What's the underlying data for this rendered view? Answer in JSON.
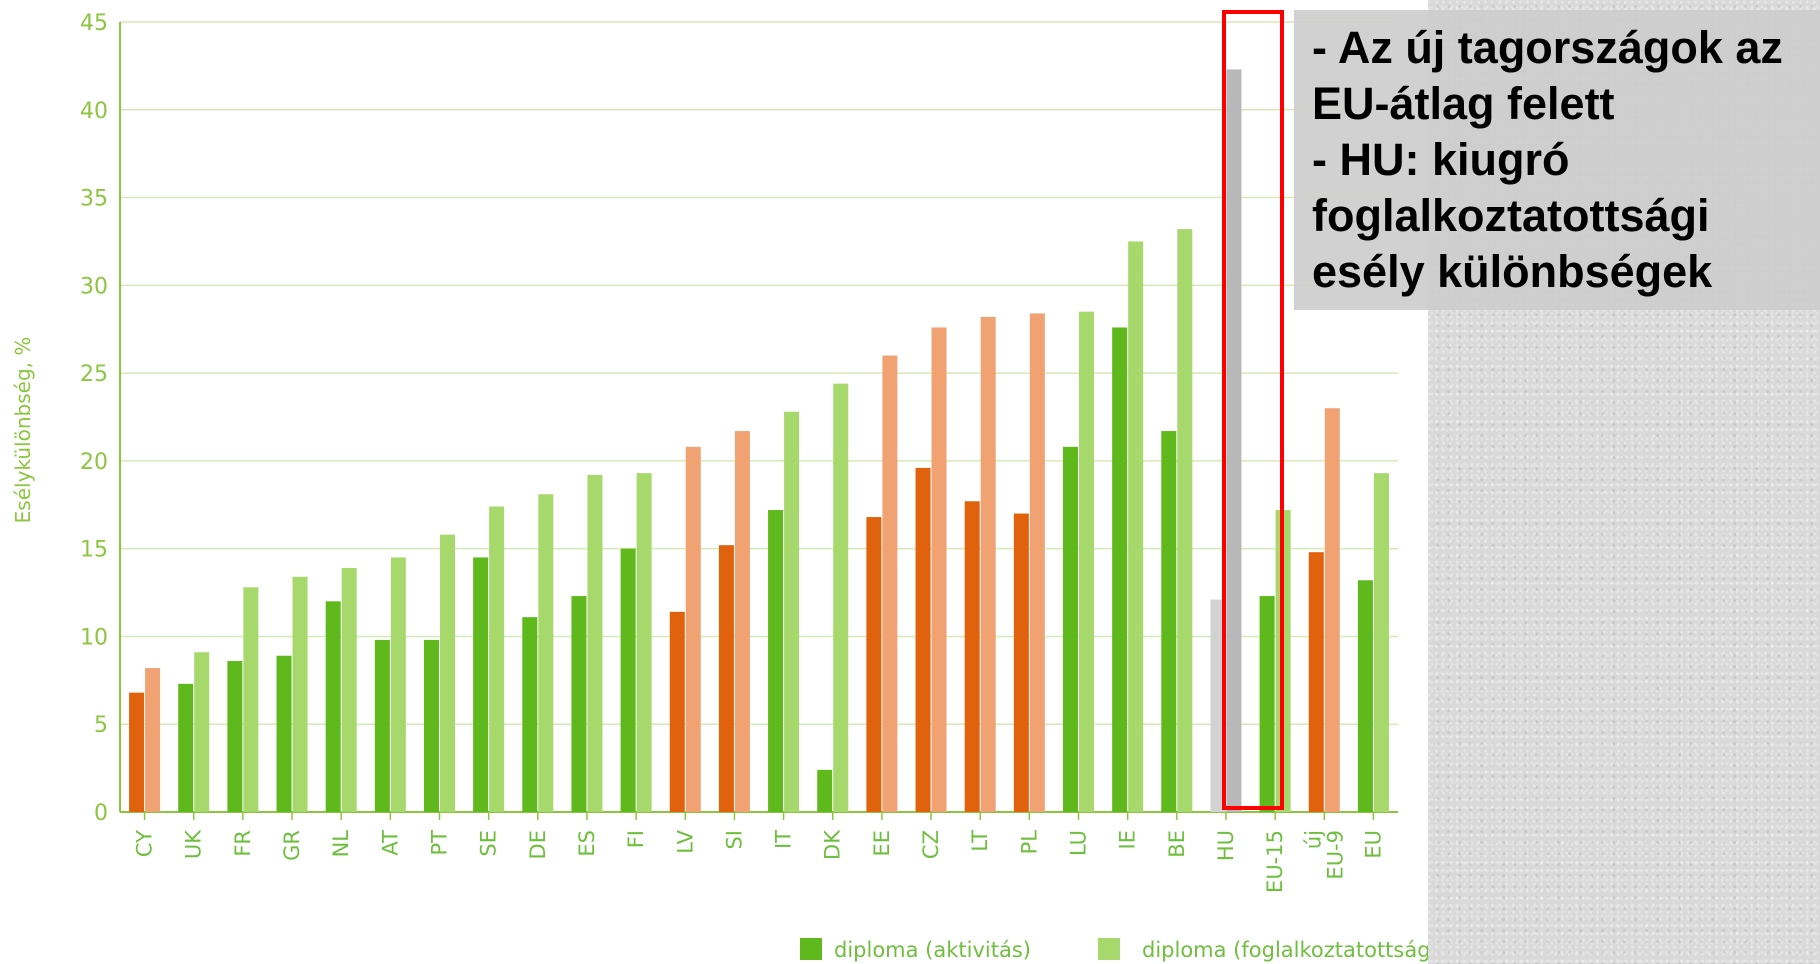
{
  "chart_data": {
    "type": "bar",
    "title": "",
    "xlabel": "",
    "ylabel": "Esélykülönbség, %",
    "ylim": [
      0,
      45
    ],
    "yticks": [
      0,
      5,
      10,
      15,
      20,
      25,
      30,
      35,
      40,
      45
    ],
    "grid": true,
    "legend_position": "bottom-right",
    "series": [
      {
        "name": "diploma (aktivitás)",
        "color": "#5fb81c"
      },
      {
        "name": "diploma (foglalkoztatottság)",
        "color": "#a6d86b"
      }
    ],
    "categories": [
      "CY",
      "UK",
      "FR",
      "GR",
      "NL",
      "AT",
      "PT",
      "SE",
      "DE",
      "ES",
      "FI",
      "LV",
      "SI",
      "IT",
      "DK",
      "EE",
      "CZ",
      "LT",
      "PL",
      "LU",
      "IE",
      "BE",
      "HU",
      "EU-15",
      "új EU-9",
      "EU"
    ],
    "values_aktivitas": [
      6.8,
      7.3,
      8.6,
      8.9,
      12.0,
      9.8,
      9.8,
      14.5,
      11.1,
      12.3,
      15.0,
      11.4,
      15.2,
      17.2,
      2.4,
      16.8,
      19.6,
      17.7,
      17.0,
      20.8,
      27.6,
      21.7,
      12.1,
      12.3,
      14.8,
      13.2
    ],
    "values_foglalkoztatottsag": [
      8.2,
      9.1,
      12.8,
      13.4,
      13.9,
      14.5,
      15.8,
      17.4,
      18.1,
      19.2,
      19.3,
      20.8,
      21.7,
      22.8,
      24.4,
      26.0,
      27.6,
      28.2,
      28.4,
      28.5,
      32.5,
      33.2,
      42.3,
      17.2,
      23.0,
      19.3
    ],
    "group_colors": [
      "orange",
      "green",
      "green",
      "green",
      "green",
      "green",
      "green",
      "green",
      "green",
      "green",
      "green",
      "orange",
      "orange",
      "green",
      "green",
      "orange",
      "orange",
      "orange",
      "orange",
      "green",
      "green",
      "green",
      "gray",
      "green",
      "orange",
      "green"
    ],
    "palette": {
      "green": [
        "#5fb81c",
        "#a6d86b"
      ],
      "orange": [
        "#e0620c",
        "#f0a273"
      ],
      "gray": [
        "#d2d2d2",
        "#b8b8b8"
      ]
    },
    "grid_color": "#d6e9b8",
    "axis_color": "#8cc63f"
  },
  "annotation": {
    "lines": [
      "- Az új tagországok az",
      "EU-átlag felett",
      "- HU: kiugró",
      "foglalkoztatottsági",
      "esély különbségek"
    ],
    "highlight_category": "HU",
    "highlight_color": "#ff0000"
  }
}
